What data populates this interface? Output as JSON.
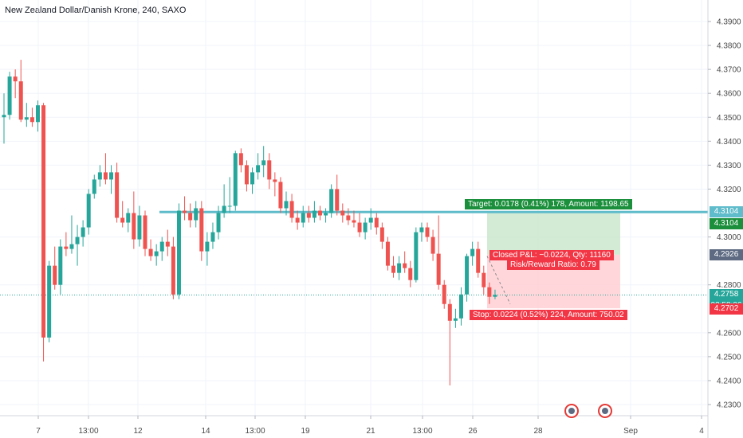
{
  "title": "New Zealand Dollar/Danish Krone, 240, SAXO",
  "price_axis": {
    "ticks": [
      "4.3900",
      "4.3800",
      "4.3700",
      "4.3600",
      "4.3500",
      "4.3400",
      "4.3300",
      "4.3200",
      "4.3000",
      "4.2800",
      "4.2600",
      "4.2500",
      "4.2400",
      "4.2300"
    ],
    "ticks_value": [
      4.39,
      4.38,
      4.37,
      4.36,
      4.35,
      4.34,
      4.33,
      4.32,
      4.3,
      4.28,
      4.26,
      4.25,
      4.24,
      4.23
    ]
  },
  "time_axis": {
    "labels": [
      "7",
      "13:00",
      "12",
      "14",
      "13:00",
      "19",
      "21",
      "13:00",
      "26",
      "28",
      "Sep",
      "4"
    ]
  },
  "tags": {
    "target_upper": {
      "text": "4.3104",
      "color": "#5fbccb"
    },
    "target_lower": {
      "text": "4.3104",
      "color": "#1b8f3c"
    },
    "closed": {
      "text": "4.2926",
      "color": "#5d6a82"
    },
    "current": {
      "text": "4.2758",
      "color": "#26a69a"
    },
    "countdown": {
      "text": "03:58:06",
      "color": "#26a69a"
    },
    "stop": {
      "text": "4.2702",
      "color": "#f23645"
    }
  },
  "position": {
    "target_label": "Target: 0.0178 (0.41%) 178, Amount: 1198.65",
    "closed_label": "Closed P&L: −0.0224, Qty: 11160",
    "ratio_label": "Risk/Reward Ratio: 0.79",
    "stop_label": "Stop: 0.0224 (0.52%) 224, Amount: 750.02",
    "entry": 4.2926,
    "target": 4.3104,
    "stop": 4.2702
  },
  "colors": {
    "up": "#26a69a",
    "down": "#ef5350",
    "horizontal_line": "#5fbccb",
    "target_zone": "#c8e6c9",
    "stop_zone": "#ffcdd2"
  },
  "chart_data": {
    "type": "candlestick",
    "title": "New Zealand Dollar/Danish Krone, 240, SAXO",
    "ylim": [
      4.225,
      4.395
    ],
    "horizontal_line": 4.3104,
    "current_price": 4.2758,
    "candles": [
      {
        "o": 4.35,
        "h": 4.36,
        "l": 4.339,
        "c": 4.351
      },
      {
        "o": 4.351,
        "h": 4.369,
        "l": 4.349,
        "c": 4.367
      },
      {
        "o": 4.367,
        "h": 4.37,
        "l": 4.358,
        "c": 4.365
      },
      {
        "o": 4.365,
        "h": 4.374,
        "l": 4.348,
        "c": 4.349
      },
      {
        "o": 4.349,
        "h": 4.356,
        "l": 4.346,
        "c": 4.35
      },
      {
        "o": 4.35,
        "h": 4.354,
        "l": 4.346,
        "c": 4.348
      },
      {
        "o": 4.348,
        "h": 4.357,
        "l": 4.344,
        "c": 4.355
      },
      {
        "o": 4.355,
        "h": 4.356,
        "l": 4.248,
        "c": 4.258
      },
      {
        "o": 4.258,
        "h": 4.29,
        "l": 4.256,
        "c": 4.288
      },
      {
        "o": 4.288,
        "h": 4.296,
        "l": 4.278,
        "c": 4.28
      },
      {
        "o": 4.28,
        "h": 4.299,
        "l": 4.276,
        "c": 4.296
      },
      {
        "o": 4.296,
        "h": 4.302,
        "l": 4.292,
        "c": 4.295
      },
      {
        "o": 4.295,
        "h": 4.309,
        "l": 4.293,
        "c": 4.297
      },
      {
        "o": 4.297,
        "h": 4.305,
        "l": 4.288,
        "c": 4.3
      },
      {
        "o": 4.3,
        "h": 4.307,
        "l": 4.296,
        "c": 4.304
      },
      {
        "o": 4.304,
        "h": 4.32,
        "l": 4.301,
        "c": 4.318
      },
      {
        "o": 4.318,
        "h": 4.326,
        "l": 4.316,
        "c": 4.324
      },
      {
        "o": 4.324,
        "h": 4.33,
        "l": 4.321,
        "c": 4.327
      },
      {
        "o": 4.327,
        "h": 4.335,
        "l": 4.322,
        "c": 4.324
      },
      {
        "o": 4.324,
        "h": 4.33,
        "l": 4.318,
        "c": 4.327
      },
      {
        "o": 4.327,
        "h": 4.331,
        "l": 4.306,
        "c": 4.308
      },
      {
        "o": 4.308,
        "h": 4.315,
        "l": 4.304,
        "c": 4.306
      },
      {
        "o": 4.306,
        "h": 4.312,
        "l": 4.302,
        "c": 4.31
      },
      {
        "o": 4.31,
        "h": 4.319,
        "l": 4.295,
        "c": 4.299
      },
      {
        "o": 4.299,
        "h": 4.313,
        "l": 4.296,
        "c": 4.309
      },
      {
        "o": 4.309,
        "h": 4.311,
        "l": 4.292,
        "c": 4.295
      },
      {
        "o": 4.295,
        "h": 4.299,
        "l": 4.29,
        "c": 4.292
      },
      {
        "o": 4.292,
        "h": 4.297,
        "l": 4.288,
        "c": 4.294
      },
      {
        "o": 4.294,
        "h": 4.3,
        "l": 4.29,
        "c": 4.298
      },
      {
        "o": 4.298,
        "h": 4.303,
        "l": 4.292,
        "c": 4.296
      },
      {
        "o": 4.296,
        "h": 4.3,
        "l": 4.274,
        "c": 4.276
      },
      {
        "o": 4.276,
        "h": 4.314,
        "l": 4.274,
        "c": 4.311
      },
      {
        "o": 4.311,
        "h": 4.317,
        "l": 4.307,
        "c": 4.31
      },
      {
        "o": 4.31,
        "h": 4.314,
        "l": 4.304,
        "c": 4.307
      },
      {
        "o": 4.307,
        "h": 4.315,
        "l": 4.304,
        "c": 4.312
      },
      {
        "o": 4.312,
        "h": 4.315,
        "l": 4.29,
        "c": 4.294
      },
      {
        "o": 4.294,
        "h": 4.302,
        "l": 4.288,
        "c": 4.298
      },
      {
        "o": 4.298,
        "h": 4.306,
        "l": 4.295,
        "c": 4.302
      },
      {
        "o": 4.302,
        "h": 4.313,
        "l": 4.299,
        "c": 4.31
      },
      {
        "o": 4.31,
        "h": 4.322,
        "l": 4.308,
        "c": 4.313
      },
      {
        "o": 4.313,
        "h": 4.325,
        "l": 4.31,
        "c": 4.313
      },
      {
        "o": 4.313,
        "h": 4.336,
        "l": 4.311,
        "c": 4.335
      },
      {
        "o": 4.335,
        "h": 4.337,
        "l": 4.327,
        "c": 4.33
      },
      {
        "o": 4.33,
        "h": 4.332,
        "l": 4.319,
        "c": 4.322
      },
      {
        "o": 4.322,
        "h": 4.329,
        "l": 4.318,
        "c": 4.327
      },
      {
        "o": 4.327,
        "h": 4.335,
        "l": 4.324,
        "c": 4.33
      },
      {
        "o": 4.33,
        "h": 4.338,
        "l": 4.325,
        "c": 4.332
      },
      {
        "o": 4.332,
        "h": 4.335,
        "l": 4.32,
        "c": 4.324
      },
      {
        "o": 4.324,
        "h": 4.327,
        "l": 4.317,
        "c": 4.323
      },
      {
        "o": 4.323,
        "h": 4.325,
        "l": 4.31,
        "c": 4.312
      },
      {
        "o": 4.312,
        "h": 4.319,
        "l": 4.309,
        "c": 4.315
      },
      {
        "o": 4.315,
        "h": 4.318,
        "l": 4.306,
        "c": 4.308
      },
      {
        "o": 4.308,
        "h": 4.311,
        "l": 4.303,
        "c": 4.306
      },
      {
        "o": 4.306,
        "h": 4.313,
        "l": 4.304,
        "c": 4.31
      },
      {
        "o": 4.31,
        "h": 4.313,
        "l": 4.306,
        "c": 4.308
      },
      {
        "o": 4.308,
        "h": 4.315,
        "l": 4.306,
        "c": 4.311
      },
      {
        "o": 4.311,
        "h": 4.313,
        "l": 4.307,
        "c": 4.309
      },
      {
        "o": 4.309,
        "h": 4.312,
        "l": 4.306,
        "c": 4.31
      },
      {
        "o": 4.31,
        "h": 4.322,
        "l": 4.308,
        "c": 4.32
      },
      {
        "o": 4.32,
        "h": 4.326,
        "l": 4.309,
        "c": 4.311
      },
      {
        "o": 4.311,
        "h": 4.314,
        "l": 4.306,
        "c": 4.309
      },
      {
        "o": 4.309,
        "h": 4.312,
        "l": 4.305,
        "c": 4.307
      },
      {
        "o": 4.307,
        "h": 4.311,
        "l": 4.304,
        "c": 4.306
      },
      {
        "o": 4.306,
        "h": 4.31,
        "l": 4.3,
        "c": 4.302
      },
      {
        "o": 4.302,
        "h": 4.308,
        "l": 4.299,
        "c": 4.306
      },
      {
        "o": 4.306,
        "h": 4.312,
        "l": 4.303,
        "c": 4.308
      },
      {
        "o": 4.308,
        "h": 4.31,
        "l": 4.301,
        "c": 4.304
      },
      {
        "o": 4.304,
        "h": 4.306,
        "l": 4.295,
        "c": 4.298
      },
      {
        "o": 4.298,
        "h": 4.3,
        "l": 4.286,
        "c": 4.288
      },
      {
        "o": 4.288,
        "h": 4.292,
        "l": 4.283,
        "c": 4.285
      },
      {
        "o": 4.285,
        "h": 4.292,
        "l": 4.282,
        "c": 4.289
      },
      {
        "o": 4.289,
        "h": 4.294,
        "l": 4.285,
        "c": 4.287
      },
      {
        "o": 4.287,
        "h": 4.29,
        "l": 4.279,
        "c": 4.282
      },
      {
        "o": 4.282,
        "h": 4.304,
        "l": 4.281,
        "c": 4.302
      },
      {
        "o": 4.302,
        "h": 4.306,
        "l": 4.298,
        "c": 4.304
      },
      {
        "o": 4.304,
        "h": 4.306,
        "l": 4.298,
        "c": 4.3
      },
      {
        "o": 4.3,
        "h": 4.303,
        "l": 4.29,
        "c": 4.293
      },
      {
        "o": 4.293,
        "h": 4.309,
        "l": 4.278,
        "c": 4.28
      },
      {
        "o": 4.28,
        "h": 4.282,
        "l": 4.27,
        "c": 4.272
      },
      {
        "o": 4.272,
        "h": 4.274,
        "l": 4.238,
        "c": 4.265
      },
      {
        "o": 4.265,
        "h": 4.27,
        "l": 4.262,
        "c": 4.266
      },
      {
        "o": 4.266,
        "h": 4.279,
        "l": 4.263,
        "c": 4.276
      },
      {
        "o": 4.276,
        "h": 4.293,
        "l": 4.273,
        "c": 4.292
      },
      {
        "o": 4.292,
        "h": 4.298,
        "l": 4.288,
        "c": 4.295
      },
      {
        "o": 4.295,
        "h": 4.298,
        "l": 4.283,
        "c": 4.285
      },
      {
        "o": 4.285,
        "h": 4.288,
        "l": 4.276,
        "c": 4.279
      },
      {
        "o": 4.279,
        "h": 4.281,
        "l": 4.272,
        "c": 4.275
      },
      {
        "o": 4.275,
        "h": 4.278,
        "l": 4.274,
        "c": 4.2758
      }
    ]
  }
}
